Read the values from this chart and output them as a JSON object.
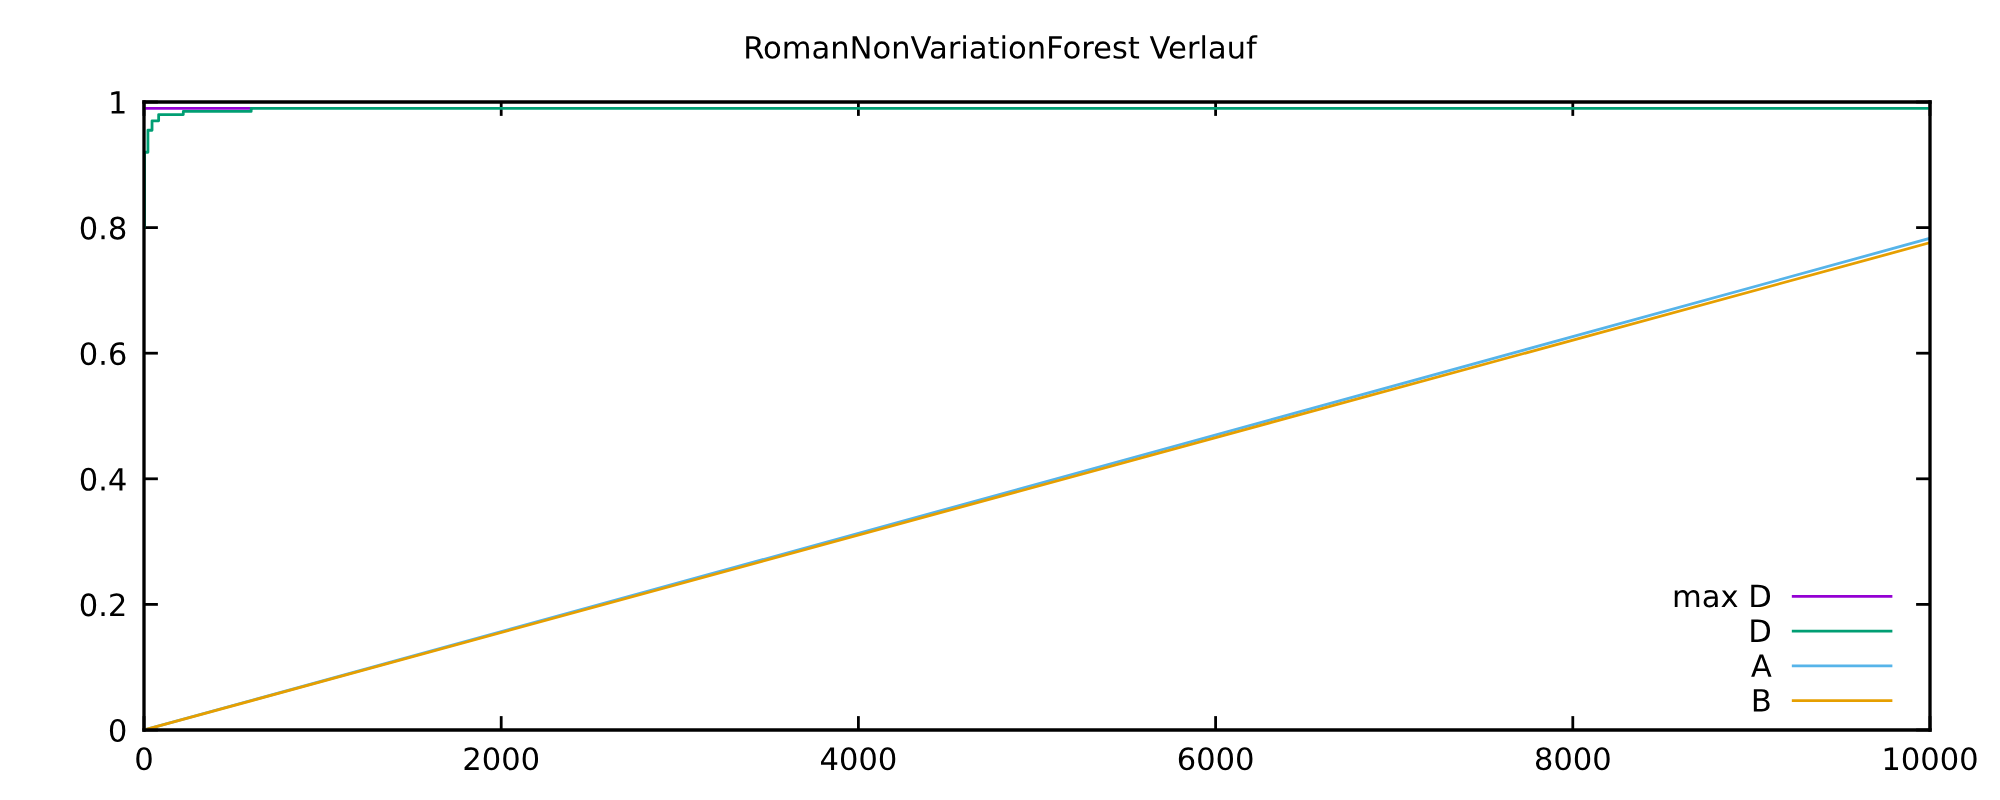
{
  "chart_data": {
    "type": "line",
    "title": "RomanNonVariationForest Verlauf",
    "series": [
      {
        "name": "max D",
        "color": "#9400d3",
        "x": [
          0,
          600
        ],
        "values": [
          0.99,
          0.99
        ]
      },
      {
        "name": "D",
        "type": "step",
        "color": "#009e73",
        "x": [
          0,
          3,
          22,
          45,
          82,
          220,
          600,
          10000
        ],
        "values": [
          0.8,
          0.92,
          0.955,
          0.97,
          0.98,
          0.985,
          0.99,
          0.99
        ]
      },
      {
        "name": "A",
        "color": "#56b4e9",
        "x": [
          0,
          10000
        ],
        "values": [
          0,
          0.783
        ]
      },
      {
        "name": "B",
        "color": "#e69f00",
        "x": [
          0,
          10000
        ],
        "values": [
          0,
          0.776
        ]
      }
    ],
    "xlim": [
      0,
      10000
    ],
    "ylim": [
      0,
      1
    ],
    "xticks": [
      0,
      2000,
      4000,
      6000,
      8000,
      10000
    ],
    "yticks": [
      0,
      0.2,
      0.4,
      0.6,
      0.8,
      1
    ],
    "grid": false,
    "legend": "bottom right",
    "line_style": "solid"
  }
}
